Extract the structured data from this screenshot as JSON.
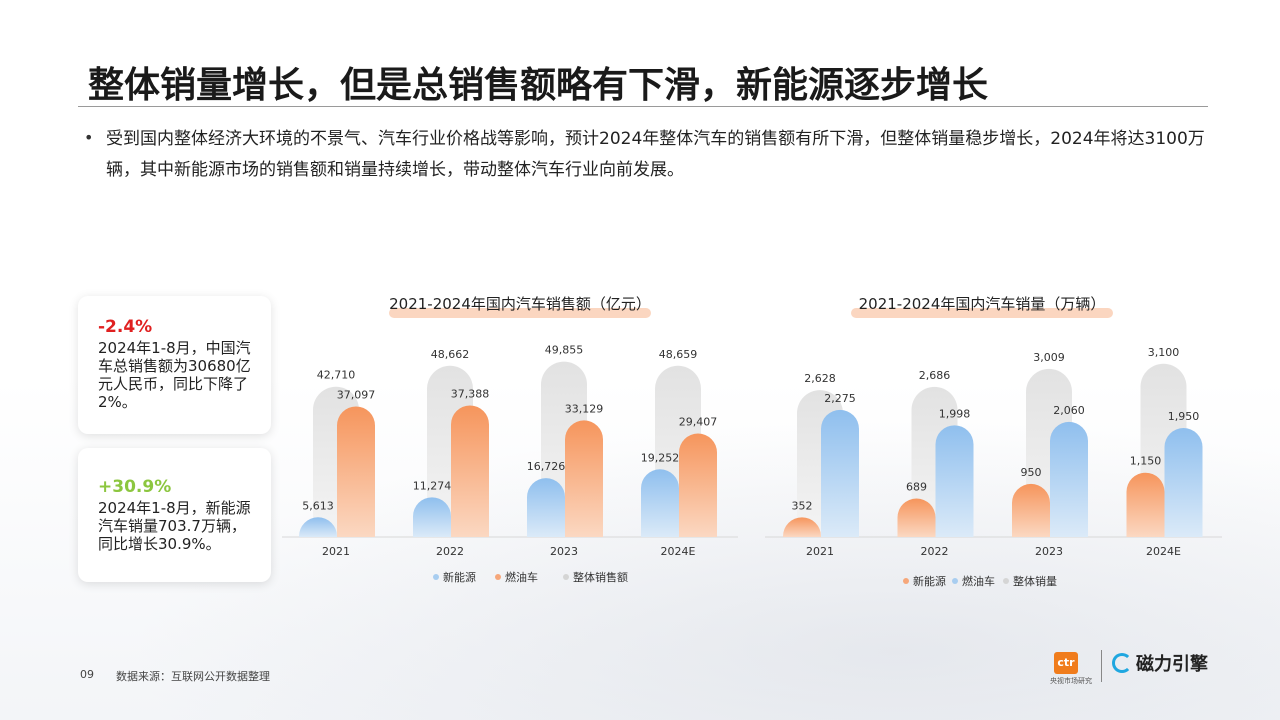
{
  "title": "整体销量增长，但是总销售额略有下滑，新能源逐步增长",
  "bullet": "受到国内整体经济大环境的不景气、汽车行业价格战等影响，预计2024年整体汽车的销售额有所下滑，但整体销量稳步增长，2024年将达3100万辆，其中新能源市场的销售额和销量持续增长，带动整体汽车行业向前发展。",
  "cards": [
    {
      "pct": "-2.4%",
      "desc": "2024年1-8月，中国汽车总销售额为30680亿元人民币，同比下降了2%。",
      "color": "#e02020"
    },
    {
      "pct": "+30.9%",
      "desc": "2024年1-8月，新能源汽车销量703.7万辆，同比增长30.9%。",
      "color": "#8cc63f"
    }
  ],
  "footer": {
    "page": "09",
    "source": "数据来源：互联网公开数据整理"
  },
  "logos": {
    "ctr": "ctr",
    "ctr_sub": "央视市场研究",
    "cili": "磁力引擎"
  },
  "colors": {
    "nev": "#a8cdf0",
    "fuel": "#f6a77a",
    "total": "#e6e6e6"
  },
  "chart_data": [
    {
      "type": "bar",
      "title": "2021-2024年国内汽车销售额（亿元）",
      "categories": [
        "2021",
        "2022",
        "2023",
        "2024E"
      ],
      "series": [
        {
          "name": "新能源",
          "values": [
            5613,
            11274,
            16726,
            19252
          ],
          "labels": [
            "5,613",
            "11,274",
            "16,726",
            "19,252"
          ],
          "color": "#a8cdf0"
        },
        {
          "name": "燃油车",
          "values": [
            37097,
            37388,
            33129,
            29407
          ],
          "labels": [
            "37,097",
            "37,388",
            "33,129",
            "29,407"
          ],
          "color": "#f6a77a"
        },
        {
          "name": "整体销售额",
          "values": [
            42710,
            48662,
            49855,
            48659
          ],
          "labels": [
            "42,710",
            "48,662",
            "49,855",
            "48,659"
          ],
          "color": "#e6e6e6"
        }
      ],
      "ylim": [
        0,
        54000
      ],
      "legend": "bottom"
    },
    {
      "type": "bar",
      "title": "2021-2024年国内汽车销量（万辆）",
      "categories": [
        "2021",
        "2022",
        "2023",
        "2024E"
      ],
      "series": [
        {
          "name": "新能源",
          "values": [
            352,
            689,
            950,
            1150
          ],
          "labels": [
            "352",
            "689",
            "950",
            "1,150"
          ],
          "color": "#f6a77a"
        },
        {
          "name": "燃油车",
          "values": [
            2275,
            1998,
            2060,
            1950
          ],
          "labels": [
            "2,275",
            "1,998",
            "2,060",
            "1,950"
          ],
          "color": "#a8cdf0"
        },
        {
          "name": "整体销量",
          "values": [
            2628,
            2686,
            3009,
            3100
          ],
          "labels": [
            "2,628",
            "2,686",
            "3,009",
            "3,100"
          ],
          "color": "#e6e6e6"
        }
      ],
      "ylim": [
        0,
        3400
      ],
      "legend": "bottom"
    }
  ]
}
